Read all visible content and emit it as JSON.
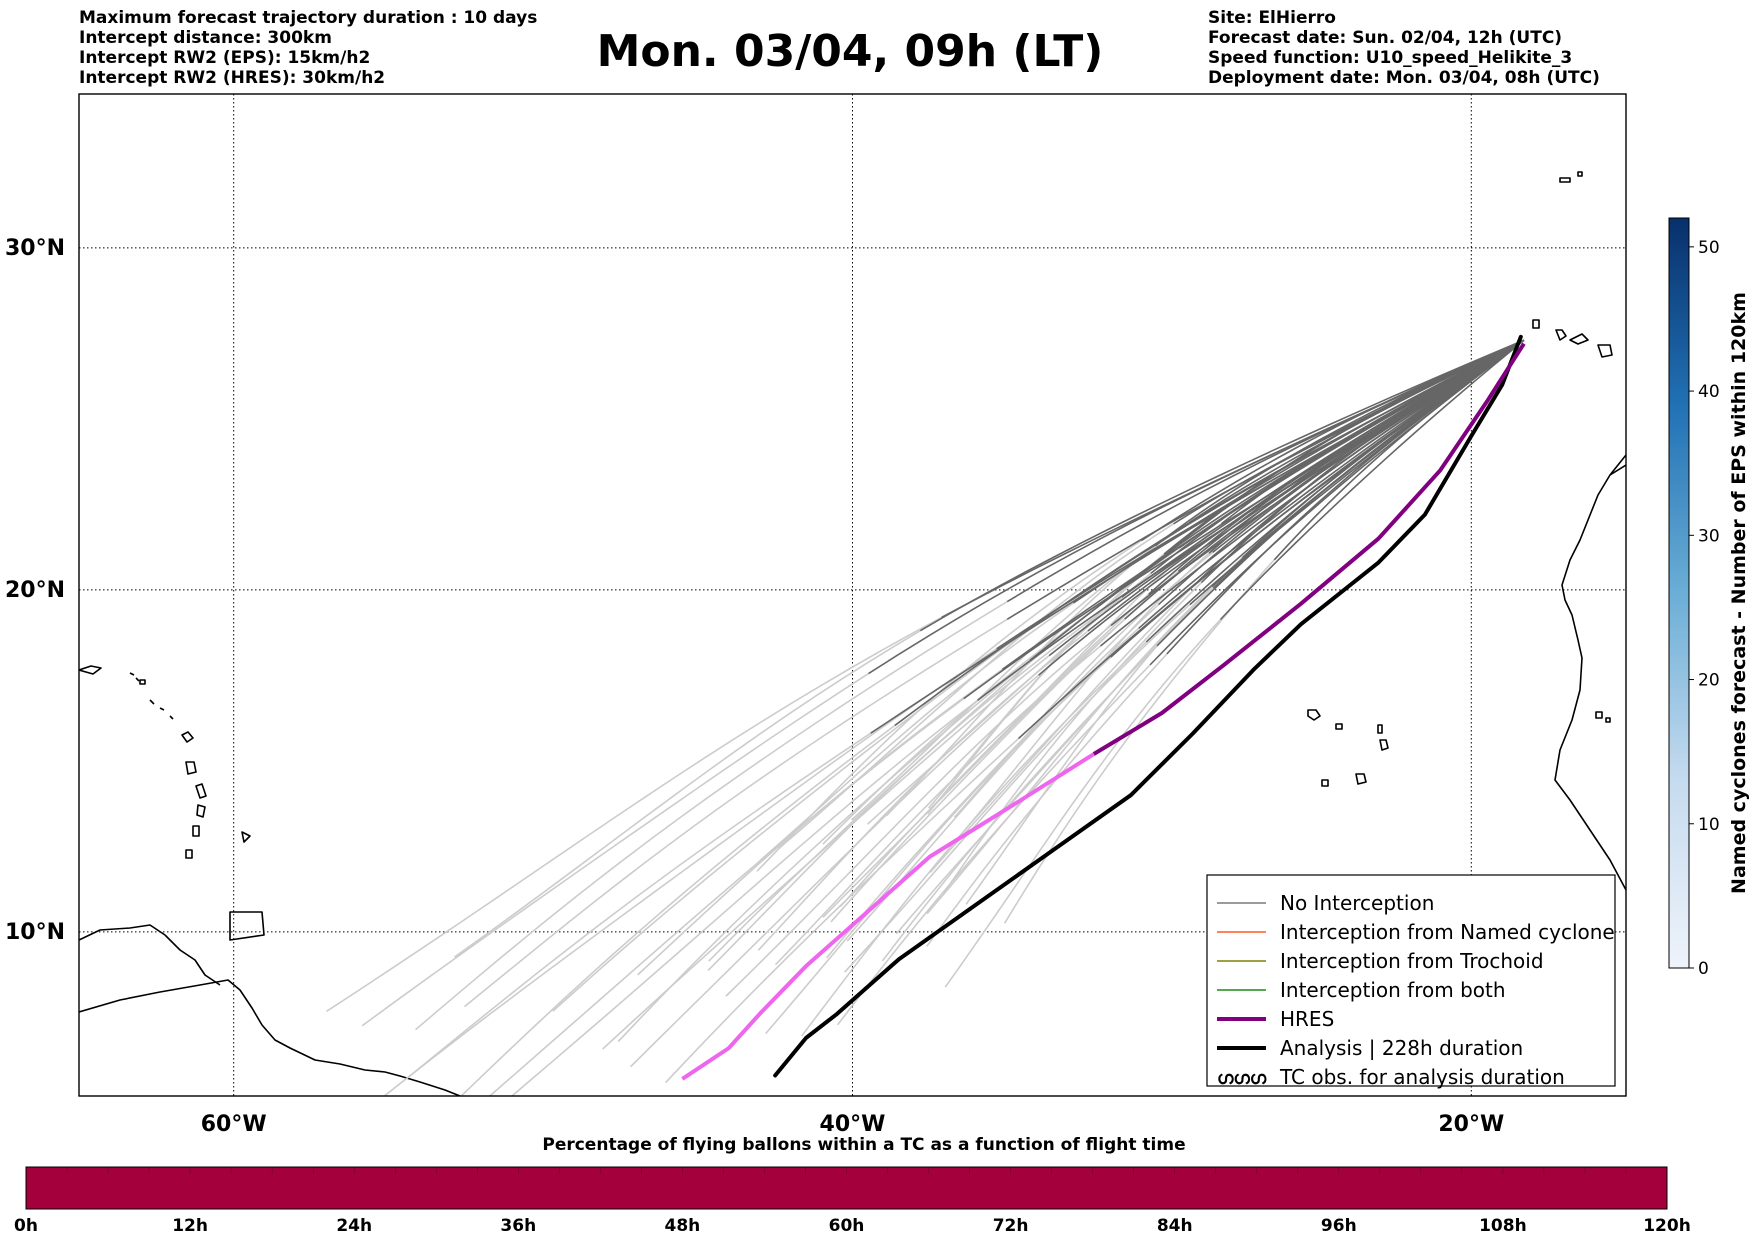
{
  "header": {
    "title": "Mon. 03/04, 09h (LT)",
    "left_lines": [
      "Maximum forecast trajectory duration : 10 days",
      "Intercept distance: 300km",
      "Intercept RW2 (EPS):  15km/h2",
      "Intercept RW2 (HRES): 30km/h2"
    ],
    "right_lines": [
      "Site: ElHierro",
      "Forecast date: Sun. 02/04, 12h (UTC)",
      "Speed function: U10_speed_Helikite_3",
      "Deployment date: Mon. 03/04, 08h (UTC)"
    ]
  },
  "map": {
    "lon_range": [
      -65,
      -15
    ],
    "lat_range": [
      5.2,
      34.5
    ],
    "lat_ticks": [
      {
        "value": 30,
        "label": "30°N"
      },
      {
        "value": 20,
        "label": "20°N"
      },
      {
        "value": 10,
        "label": "10°N"
      }
    ],
    "lon_ticks": [
      {
        "value": -60,
        "label": "60°W"
      },
      {
        "value": -40,
        "label": "40°W"
      },
      {
        "value": -20,
        "label": "20°W"
      }
    ]
  },
  "legend": {
    "items": [
      {
        "label": "No Interception",
        "color": "#7a7a7a",
        "style": "thin"
      },
      {
        "label": "Interception from Named cyclone",
        "color": "#ff5a1f",
        "style": "thin"
      },
      {
        "label": "Interception from Trochoid",
        "color": "#808000",
        "style": "thin"
      },
      {
        "label": "Interception from both",
        "color": "#1a8a1a",
        "style": "thin"
      },
      {
        "label": "HRES",
        "color": "#800080",
        "style": "thick"
      },
      {
        "label": "Analysis | 228h duration",
        "color": "#000000",
        "style": "thick"
      },
      {
        "label": "TC obs. for analysis duration",
        "color": "#000000",
        "style": "symbol",
        "symbol": "ഗഗഗ"
      }
    ]
  },
  "colorbar_right": {
    "label": "Named cyclones forecast - Number of EPS within 120km",
    "min": 0,
    "max": 52,
    "ticks": [
      0,
      10,
      20,
      30,
      40,
      50
    ],
    "color_low": "#e6eef8",
    "color_high": "#08306b"
  },
  "colorbar_bottom": {
    "title": "Percentage of flying ballons within a TC as a function of flight time",
    "ticks": [
      "0h",
      "12h",
      "24h",
      "36h",
      "48h",
      "60h",
      "72h",
      "84h",
      "96h",
      "108h",
      "120h"
    ],
    "color": "#a3003c"
  },
  "chart_data": {
    "type": "line",
    "xlabel": "",
    "ylabel": "",
    "xlim": [
      -65,
      -15
    ],
    "ylim": [
      5.2,
      34.5
    ],
    "series": [
      {
        "name": "HRES",
        "color": "#800080",
        "faded_color": "#ee66ee",
        "points": [
          [
            -18.3,
            27.2
          ],
          [
            -19.5,
            25.5
          ],
          [
            -21.0,
            23.5
          ],
          [
            -23.0,
            21.5
          ],
          [
            -25.5,
            19.6
          ],
          [
            -28.0,
            17.8
          ],
          [
            -30.0,
            16.4
          ],
          [
            -32.2,
            15.2
          ],
          [
            -35.0,
            13.6
          ],
          [
            -37.5,
            12.2
          ],
          [
            -39.5,
            10.6
          ],
          [
            -41.5,
            9.0
          ],
          [
            -43.0,
            7.6
          ],
          [
            -44.0,
            6.6
          ],
          [
            -45.5,
            5.7
          ]
        ]
      },
      {
        "name": "Analysis | 228h duration",
        "color": "#000000",
        "points": [
          [
            -18.4,
            27.4
          ],
          [
            -19.0,
            26.0
          ],
          [
            -20.0,
            24.5
          ],
          [
            -21.5,
            22.2
          ],
          [
            -23.0,
            20.8
          ],
          [
            -25.5,
            19.0
          ],
          [
            -27.0,
            17.7
          ],
          [
            -29.0,
            15.8
          ],
          [
            -31.0,
            14.0
          ],
          [
            -33.5,
            12.4
          ],
          [
            -36.0,
            10.8
          ],
          [
            -38.5,
            9.2
          ],
          [
            -40.5,
            7.6
          ],
          [
            -41.5,
            6.9
          ],
          [
            -42.5,
            5.8
          ]
        ]
      }
    ],
    "ensemble": {
      "name": "No Interception",
      "count": 51,
      "near_color": "#666666",
      "far_color": "#cccccc",
      "start": [
        -18.3,
        27.3
      ]
    }
  }
}
